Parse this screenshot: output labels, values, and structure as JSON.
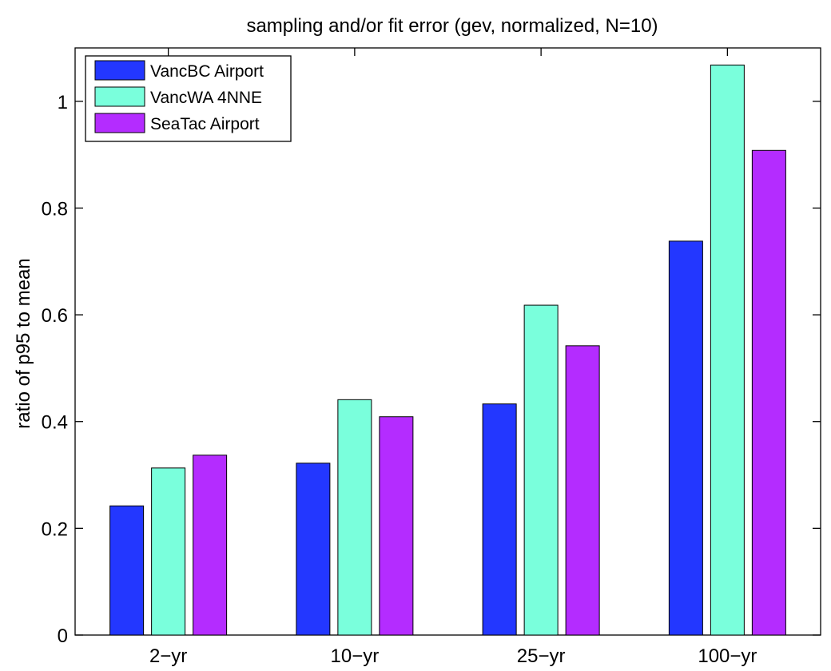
{
  "chart_data": {
    "type": "bar",
    "title": "sampling and/or fit error (gev, normalized, N=10)",
    "xlabel": "",
    "ylabel": "ratio of p95 to mean",
    "categories": [
      "2−yr",
      "10−yr",
      "25−yr",
      "100−yr"
    ],
    "ylim": [
      0,
      1.1
    ],
    "yticks": [
      0,
      0.2,
      0.4,
      0.6,
      0.8,
      1
    ],
    "ytick_labels": [
      "0",
      "0.2",
      "0.4",
      "0.6",
      "0.8",
      "1"
    ],
    "grid": false,
    "legend_position": "top-left",
    "series": [
      {
        "name": "VancBC Airport",
        "color": "#2337ff",
        "values": [
          0.242,
          0.322,
          0.433,
          0.738
        ]
      },
      {
        "name": "VancWA 4NNE",
        "color": "#7affdc",
        "values": [
          0.313,
          0.441,
          0.618,
          1.068
        ]
      },
      {
        "name": "SeaTac Airport",
        "color": "#b42cff",
        "values": [
          0.337,
          0.409,
          0.542,
          0.908
        ]
      }
    ]
  }
}
